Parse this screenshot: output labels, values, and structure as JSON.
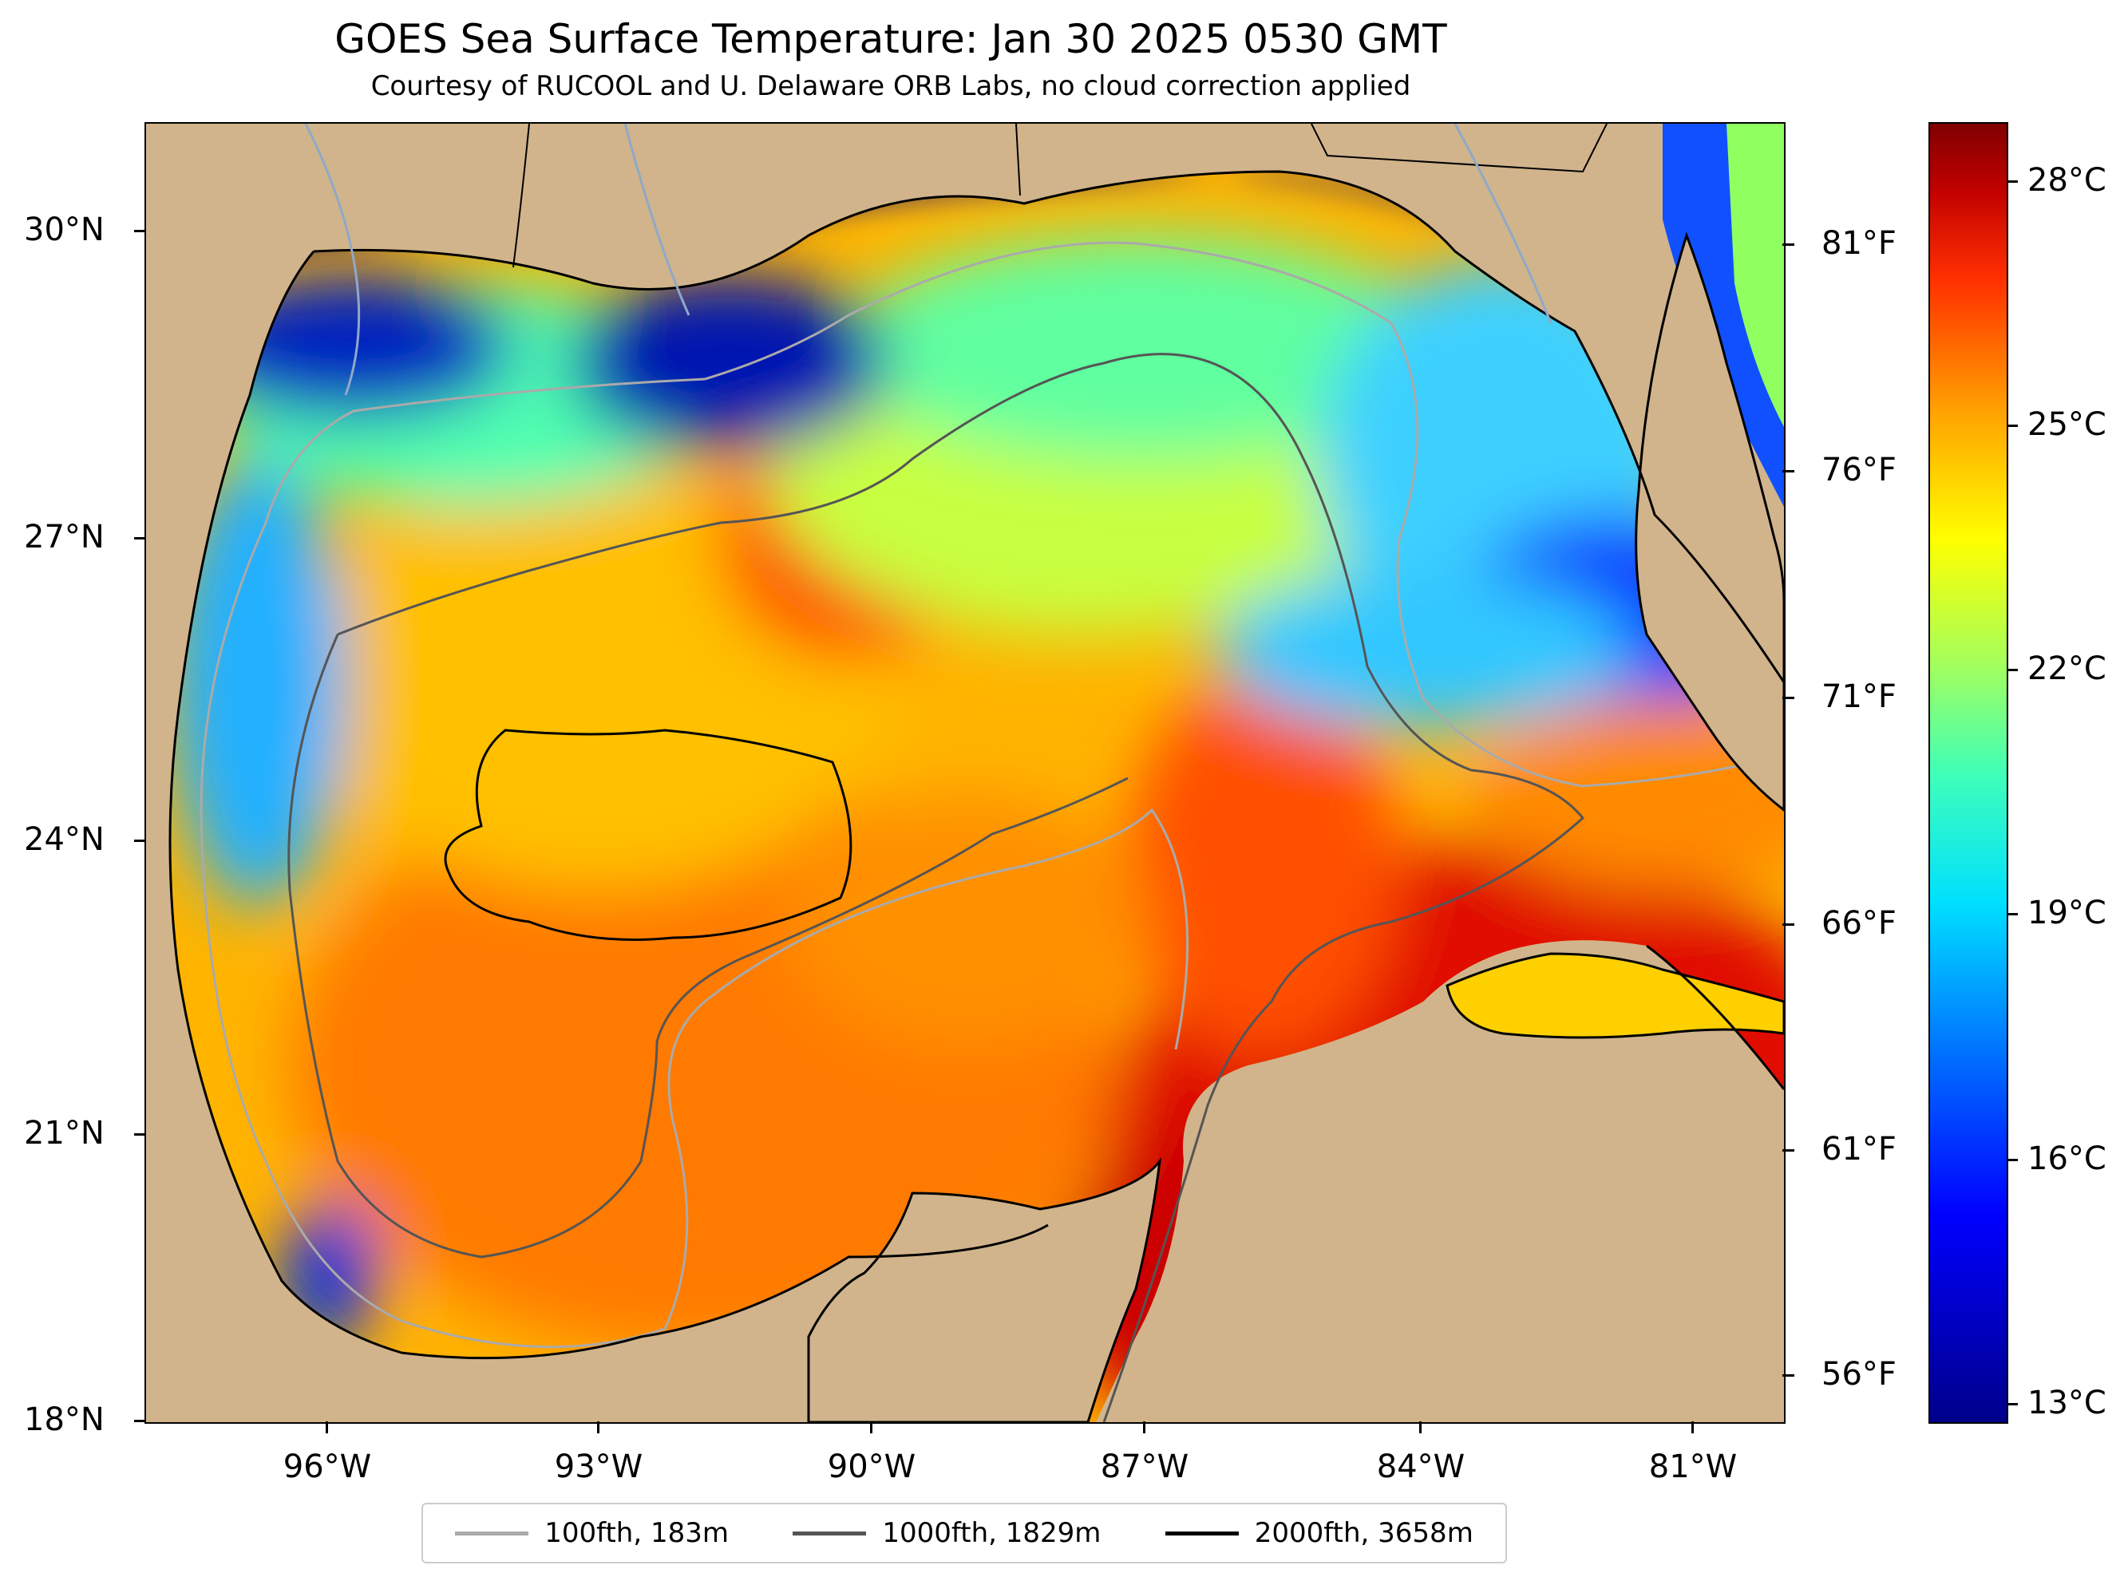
{
  "title": "GOES Sea Surface Temperature: Jan 30 2025 0530 GMT",
  "subtitle": "Courtesy of RUCOOL and U. Delaware ORB Labs, no cloud correction applied",
  "map": {
    "latitude_labels": [
      "30°N",
      "27°N",
      "24°N",
      "21°N",
      "18°N"
    ],
    "longitude_labels": [
      "96°W",
      "93°W",
      "90°W",
      "87°W",
      "84°W",
      "81°W"
    ],
    "fahrenheit_labels": [
      "81°F",
      "76°F",
      "71°F",
      "66°F",
      "61°F",
      "56°F"
    ],
    "land_color": "#d1b48c",
    "extent": {
      "lon": [
        -98,
        -80
      ],
      "lat": [
        18,
        31
      ]
    }
  },
  "colorbar": {
    "labels": [
      "28°C",
      "25°C",
      "22°C",
      "19°C",
      "16°C",
      "13°C"
    ],
    "range_c": [
      12.5,
      28.8
    ],
    "colormap": "jet"
  },
  "legend": [
    {
      "label": "100fth, 183m",
      "color": "#aaaaaa"
    },
    {
      "label": "1000fth, 1829m",
      "color": "#555555"
    },
    {
      "label": "2000fth, 3658m",
      "color": "#000000"
    }
  ]
}
